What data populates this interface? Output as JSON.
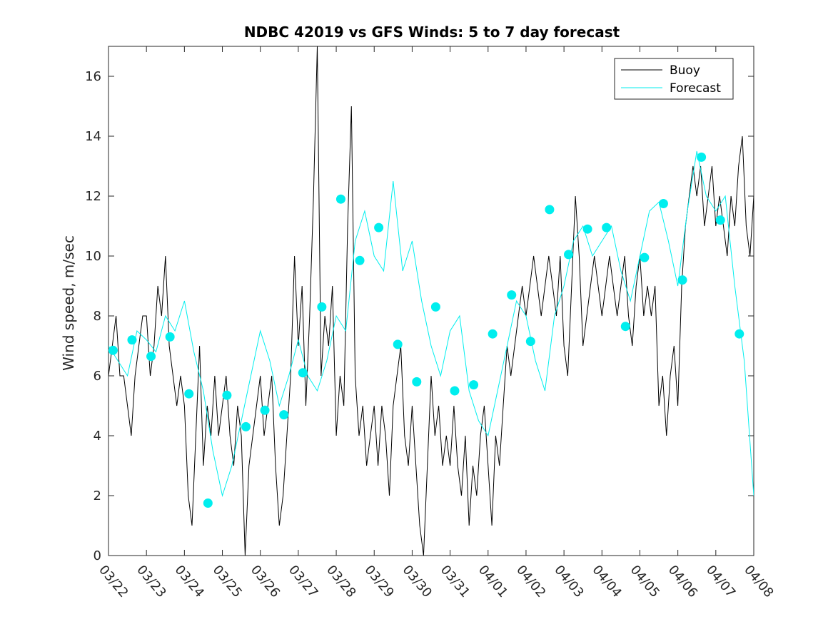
{
  "chart_data": {
    "type": "line",
    "title": "NDBC 42019 vs GFS Winds: 5 to 7 day forecast",
    "xlabel": "",
    "ylabel": "Wind speed, m/sec",
    "ylim": [
      0,
      17
    ],
    "yticks": [
      0,
      2,
      4,
      6,
      8,
      10,
      12,
      14,
      16
    ],
    "xlim": [
      0,
      17
    ],
    "x_tick_labels": [
      "03/22",
      "03/23",
      "03/24",
      "03/25",
      "03/26",
      "03/27",
      "03/28",
      "03/29",
      "03/30",
      "03/31",
      "04/01",
      "04/02",
      "04/03",
      "04/04",
      "04/05",
      "04/06",
      "04/07",
      "04/08"
    ],
    "legend": {
      "placement": "top-right",
      "entries": [
        "Buoy",
        "Forecast"
      ]
    },
    "colors": {
      "buoy": "#000000",
      "forecast": "#00eeee"
    },
    "series": [
      {
        "name": "Buoy",
        "x": [
          0.0,
          0.1,
          0.2,
          0.3,
          0.4,
          0.5,
          0.6,
          0.7,
          0.8,
          0.9,
          1.0,
          1.1,
          1.2,
          1.3,
          1.4,
          1.5,
          1.6,
          1.7,
          1.8,
          1.9,
          2.0,
          2.1,
          2.2,
          2.3,
          2.4,
          2.5,
          2.6,
          2.7,
          2.8,
          2.9,
          3.0,
          3.1,
          3.2,
          3.3,
          3.4,
          3.5,
          3.6,
          3.7,
          3.8,
          3.9,
          4.0,
          4.1,
          4.2,
          4.3,
          4.4,
          4.5,
          4.6,
          4.7,
          4.8,
          4.9,
          5.0,
          5.1,
          5.2,
          5.3,
          5.4,
          5.5,
          5.6,
          5.7,
          5.8,
          5.9,
          6.0,
          6.1,
          6.2,
          6.3,
          6.4,
          6.5,
          6.6,
          6.7,
          6.8,
          6.9,
          7.0,
          7.1,
          7.2,
          7.3,
          7.4,
          7.5,
          7.6,
          7.7,
          7.8,
          7.9,
          8.0,
          8.1,
          8.2,
          8.3,
          8.4,
          8.5,
          8.6,
          8.7,
          8.8,
          8.9,
          9.0,
          9.1,
          9.2,
          9.3,
          9.4,
          9.5,
          9.6,
          9.7,
          9.8,
          9.9,
          10.0,
          10.1,
          10.2,
          10.3,
          10.4,
          10.5,
          10.6,
          10.7,
          10.8,
          10.9,
          11.0,
          11.1,
          11.2,
          11.3,
          11.4,
          11.5,
          11.6,
          11.7,
          11.8,
          11.9,
          12.0,
          12.1,
          12.2,
          12.3,
          12.4,
          12.5,
          12.6,
          12.7,
          12.8,
          12.9,
          13.0,
          13.1,
          13.2,
          13.3,
          13.4,
          13.5,
          13.6,
          13.7,
          13.8,
          13.9,
          14.0,
          14.1,
          14.2,
          14.3,
          14.4,
          14.5,
          14.6,
          14.7,
          14.8,
          14.9,
          15.0,
          15.1,
          15.2,
          15.3,
          15.4,
          15.5,
          15.6,
          15.7,
          15.8,
          15.9,
          16.0,
          16.1,
          16.2,
          16.3,
          16.4,
          16.5,
          16.6,
          16.7,
          16.8,
          16.9,
          17.0
        ],
        "values": [
          6,
          7,
          8,
          6,
          6,
          5,
          4,
          6,
          7,
          8,
          8,
          6,
          7,
          9,
          8,
          10,
          7,
          6,
          5,
          6,
          5,
          2,
          1,
          4,
          7,
          3,
          5,
          4,
          6,
          4,
          5,
          6,
          4,
          3,
          5,
          4,
          0,
          3,
          4,
          5,
          6,
          4,
          5,
          6,
          3,
          1,
          2,
          4,
          6,
          10,
          7,
          9,
          5,
          8,
          12,
          17,
          6,
          8,
          7,
          9,
          4,
          6,
          5,
          11,
          15,
          6,
          4,
          5,
          3,
          4,
          5,
          3,
          5,
          4,
          2,
          5,
          6,
          7,
          4,
          3,
          5,
          3,
          1,
          0,
          3,
          6,
          4,
          5,
          3,
          4,
          3,
          5,
          3,
          2,
          4,
          1,
          3,
          2,
          4,
          5,
          3,
          1,
          4,
          3,
          5,
          7,
          6,
          7,
          8,
          9,
          8,
          9,
          10,
          9,
          8,
          9,
          10,
          9,
          8,
          10,
          7,
          6,
          9,
          12,
          10,
          7,
          8,
          9,
          10,
          9,
          8,
          9,
          10,
          9,
          8,
          9,
          10,
          8,
          7,
          9,
          10,
          8,
          9,
          8,
          9,
          5,
          6,
          4,
          6,
          7,
          5,
          9,
          11,
          12,
          13,
          12,
          13,
          11,
          12,
          13,
          11,
          12,
          11,
          10,
          12,
          11,
          13,
          14,
          11,
          10,
          12
        ]
      },
      {
        "name": "Forecast",
        "x": [
          0.0,
          0.25,
          0.5,
          0.75,
          1.0,
          1.25,
          1.5,
          1.75,
          2.0,
          2.25,
          2.5,
          2.75,
          3.0,
          3.25,
          3.5,
          3.75,
          4.0,
          4.25,
          4.5,
          4.75,
          5.0,
          5.25,
          5.5,
          5.75,
          6.0,
          6.25,
          6.5,
          6.75,
          7.0,
          7.25,
          7.5,
          7.75,
          8.0,
          8.25,
          8.5,
          8.75,
          9.0,
          9.25,
          9.5,
          9.75,
          10.0,
          10.25,
          10.5,
          10.75,
          11.0,
          11.25,
          11.5,
          11.75,
          12.0,
          12.25,
          12.5,
          12.75,
          13.0,
          13.25,
          13.5,
          13.75,
          14.0,
          14.25,
          14.5,
          14.75,
          15.0,
          15.25,
          15.5,
          15.75,
          16.0,
          16.25,
          16.5,
          16.75,
          17.0
        ],
        "values": [
          7.0,
          6.5,
          6.0,
          7.5,
          7.2,
          6.8,
          8.0,
          7.5,
          8.5,
          6.8,
          5.5,
          3.5,
          2.0,
          3.0,
          4.5,
          6.0,
          7.5,
          6.5,
          5.0,
          6.0,
          7.2,
          6.0,
          5.5,
          6.5,
          8.0,
          7.5,
          10.5,
          11.5,
          10.0,
          9.5,
          12.5,
          9.5,
          10.5,
          8.5,
          7.0,
          6.0,
          7.5,
          8.0,
          5.5,
          4.5,
          4.0,
          5.5,
          7.0,
          8.5,
          8.0,
          6.5,
          5.5,
          8.0,
          9.0,
          10.5,
          11.0,
          10.0,
          10.5,
          11.0,
          9.5,
          8.5,
          10.0,
          11.5,
          11.8,
          10.5,
          9.0,
          11.5,
          13.5,
          12.0,
          11.5,
          12.0,
          9.0,
          6.5,
          2.0
        ]
      }
    ],
    "forecast_markers": {
      "x": [
        0.12,
        0.62,
        1.12,
        1.62,
        2.12,
        2.62,
        3.12,
        3.62,
        4.12,
        4.62,
        5.12,
        5.62,
        6.12,
        6.62,
        7.12,
        7.62,
        8.12,
        8.62,
        9.12,
        9.62,
        10.12,
        10.62,
        11.12,
        11.62,
        12.12,
        12.62,
        13.12,
        13.62,
        14.12,
        14.62,
        15.12,
        15.62,
        16.12,
        16.62
      ],
      "values": [
        6.85,
        7.2,
        6.65,
        7.3,
        5.4,
        1.75,
        5.35,
        4.3,
        4.85,
        4.7,
        6.1,
        8.3,
        11.9,
        9.85,
        10.95,
        7.05,
        5.8,
        8.3,
        5.5,
        5.7,
        7.4,
        8.7,
        7.15,
        11.55,
        10.05,
        10.9,
        10.95,
        7.65,
        9.95,
        11.75,
        9.2,
        13.3,
        11.2,
        7.4
      ]
    }
  }
}
